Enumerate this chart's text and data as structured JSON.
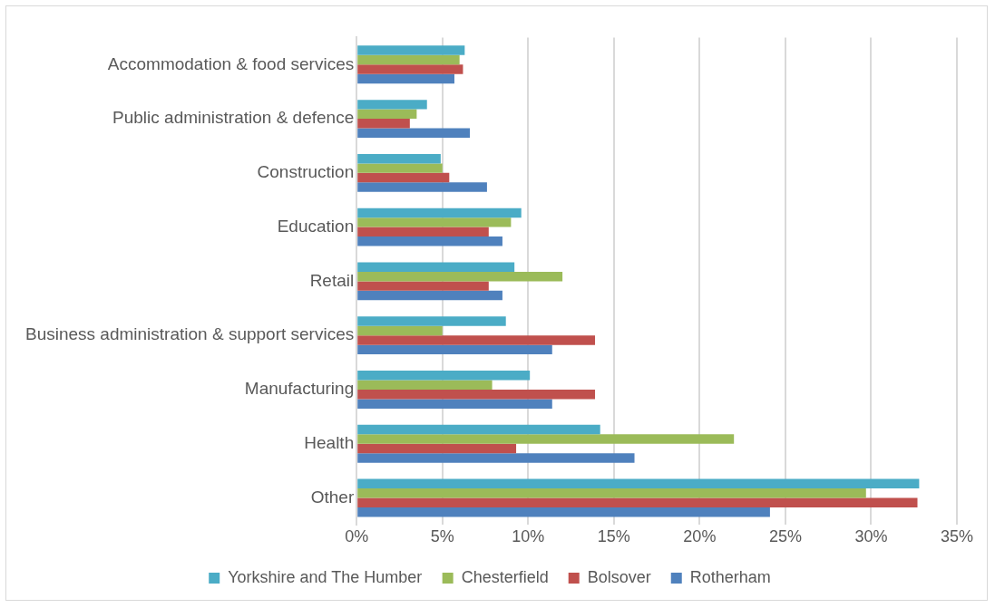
{
  "chart_data": {
    "type": "bar",
    "orientation": "horizontal",
    "categories": [
      "Accommodation & food services",
      "Public administration & defence",
      "Construction",
      "Education",
      "Retail",
      "Business administration & support services",
      "Manufacturing",
      "Health",
      "Other"
    ],
    "series": [
      {
        "name": "Yorkshire and The Humber",
        "color": "#4bacc6",
        "values": [
          6.3,
          4.1,
          4.9,
          9.6,
          9.2,
          8.7,
          10.1,
          14.2,
          32.8
        ]
      },
      {
        "name": "Chesterfield",
        "color": "#9bbb59",
        "values": [
          6.0,
          3.5,
          5.0,
          9.0,
          12.0,
          5.0,
          7.9,
          22.0,
          29.7
        ]
      },
      {
        "name": "Bolsover",
        "color": "#c0504d",
        "values": [
          6.2,
          3.1,
          5.4,
          7.7,
          7.7,
          13.9,
          13.9,
          9.3,
          32.7
        ]
      },
      {
        "name": "Rotherham",
        "color": "#4f81bd",
        "values": [
          5.7,
          6.6,
          7.6,
          8.5,
          8.5,
          11.4,
          11.4,
          16.2,
          24.1
        ]
      }
    ],
    "xlim": [
      0,
      35
    ],
    "xticks": [
      {
        "value": 0,
        "label": "0%"
      },
      {
        "value": 5,
        "label": "5%"
      },
      {
        "value": 10,
        "label": "10%"
      },
      {
        "value": 15,
        "label": "15%"
      },
      {
        "value": 20,
        "label": "20%"
      },
      {
        "value": 25,
        "label": "25%"
      },
      {
        "value": 30,
        "label": "30%"
      },
      {
        "value": 35,
        "label": "35%"
      }
    ],
    "grid": "x",
    "legend": "bottom"
  }
}
